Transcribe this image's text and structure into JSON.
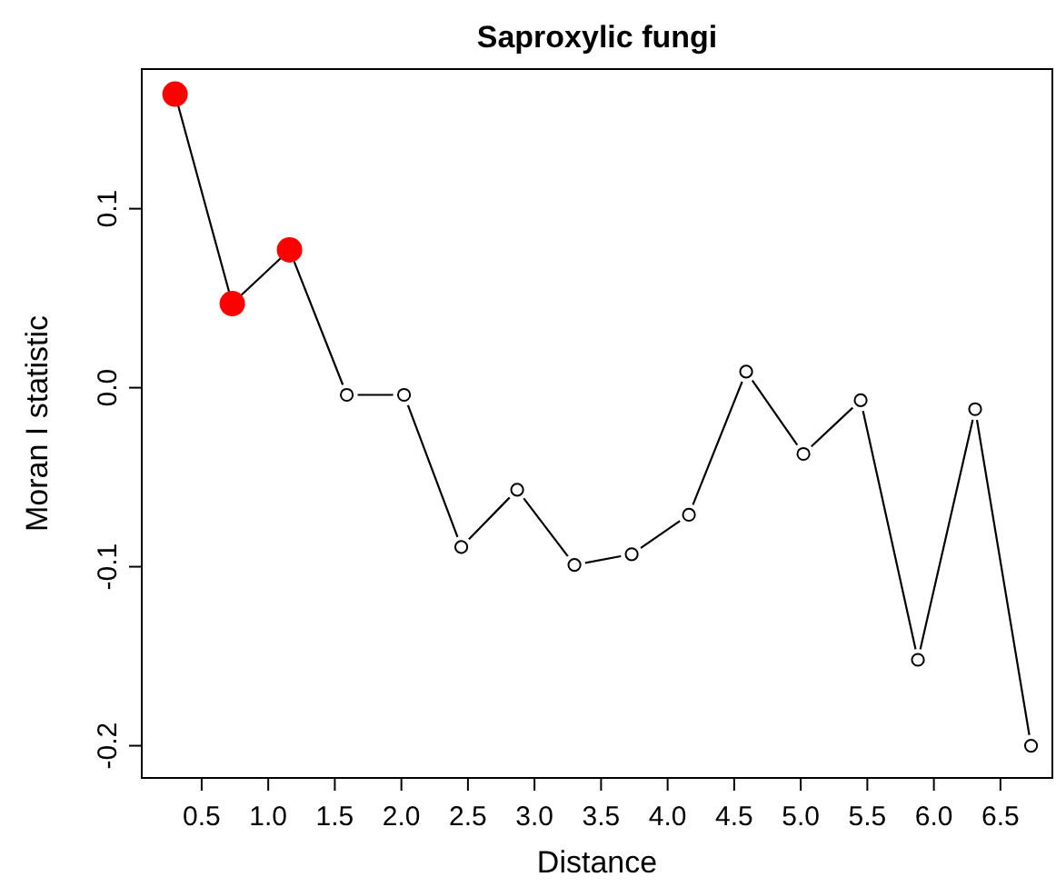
{
  "chart_data": {
    "type": "line",
    "title": "Saproxylic fungi",
    "xlabel": "Distance",
    "ylabel": "Moran I statistic",
    "xlim": [
      0.05,
      6.89
    ],
    "ylim": [
      -0.218,
      0.178
    ],
    "xticks": [
      0.5,
      {
        "value": 1,
        "label": "1.0"
      },
      1.5,
      {
        "value": 2,
        "label": "2.0"
      },
      2.5,
      {
        "value": 3,
        "label": "3.0"
      },
      3.5,
      {
        "value": 4,
        "label": "4.0"
      },
      4.5,
      {
        "value": 5,
        "label": "5.0"
      },
      5.5,
      {
        "value": 6,
        "label": "6.0"
      },
      6.5
    ],
    "yticks": [
      {
        "value": -0.2,
        "label": "-0.2"
      },
      {
        "value": -0.1,
        "label": "-0.1"
      },
      {
        "value": 0,
        "label": "0.0"
      },
      0.1
    ],
    "marker": "circle",
    "line_style": "solid",
    "series": [
      {
        "color": "#000000",
        "x": [
          0.3,
          0.73,
          1.16,
          1.59,
          2.02,
          2.45,
          2.87,
          3.3,
          3.73,
          4.16,
          4.59,
          5.02,
          5.45,
          5.88,
          6.31,
          6.73
        ],
        "values": [
          0.164,
          0.047,
          0.077,
          -0.004,
          -0.004,
          -0.089,
          -0.057,
          -0.099,
          -0.093,
          -0.071,
          0.009,
          -0.037,
          -0.007,
          -0.152,
          -0.012,
          -0.2
        ]
      },
      {
        "type": "scatter",
        "color": "#ff0000",
        "x": [
          0.3,
          0.73,
          1.16
        ],
        "values": [
          0.164,
          0.047,
          0.077
        ]
      }
    ]
  }
}
